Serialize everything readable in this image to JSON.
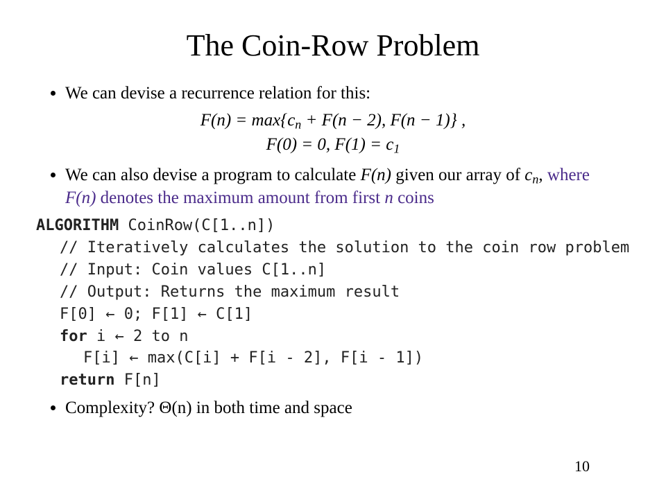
{
  "title": "The Coin-Row Problem",
  "bullets": {
    "b1": "We can devise a recurrence relation for this:",
    "b2_lead": "We can also devise a program to calculate ",
    "b2_fn": "F(n)",
    "b2_mid": " given our array of ",
    "b2_cn_c": "c",
    "b2_cn_n": "n",
    "b2_comma": ", ",
    "b2_hl_a": "where ",
    "b2_hl_fn": "F(n)",
    "b2_hl_b": " denotes the maximum amount from first ",
    "b2_hl_n": "n",
    "b2_hl_c": " coins",
    "b3": "Complexity? Θ(n) in both time and space"
  },
  "math": {
    "line1_a": "F(n) = max{",
    "line1_c": "c",
    "line1_nsub": "n",
    "line1_b": " + F(n − 2), F(n − 1)} ,",
    "line2_a": "F(0) = 0, F(1) = ",
    "line2_c": "c",
    "line2_sub": "1"
  },
  "algo": {
    "l1_kw": "ALGORITHM",
    "l1_rest": " CoinRow(C[1..n])",
    "l2": "// Iteratively calculates the solution to the coin row problem",
    "l3": "// Input: Coin values C[1..n]",
    "l4": "// Output: Returns the maximum result",
    "l5": "F[0] ← 0; F[1] ← C[1]",
    "l6_kw": "for",
    "l6_rest": " i ← 2 to n",
    "l7": "F[i] ← max(C[i] + F[i - 2], F[i - 1])",
    "l8_kw": "return",
    "l8_rest": " F[n]"
  },
  "page_number": "10",
  "colors": {
    "text": "#000000",
    "highlight": "#4a2a8a",
    "algo_text": "#222222",
    "background": "#ffffff"
  },
  "fonts": {
    "body_family": "Times New Roman",
    "mono_family": "Consolas",
    "title_size_pt": 33,
    "body_size_pt": 19,
    "mono_size_pt": 16
  }
}
